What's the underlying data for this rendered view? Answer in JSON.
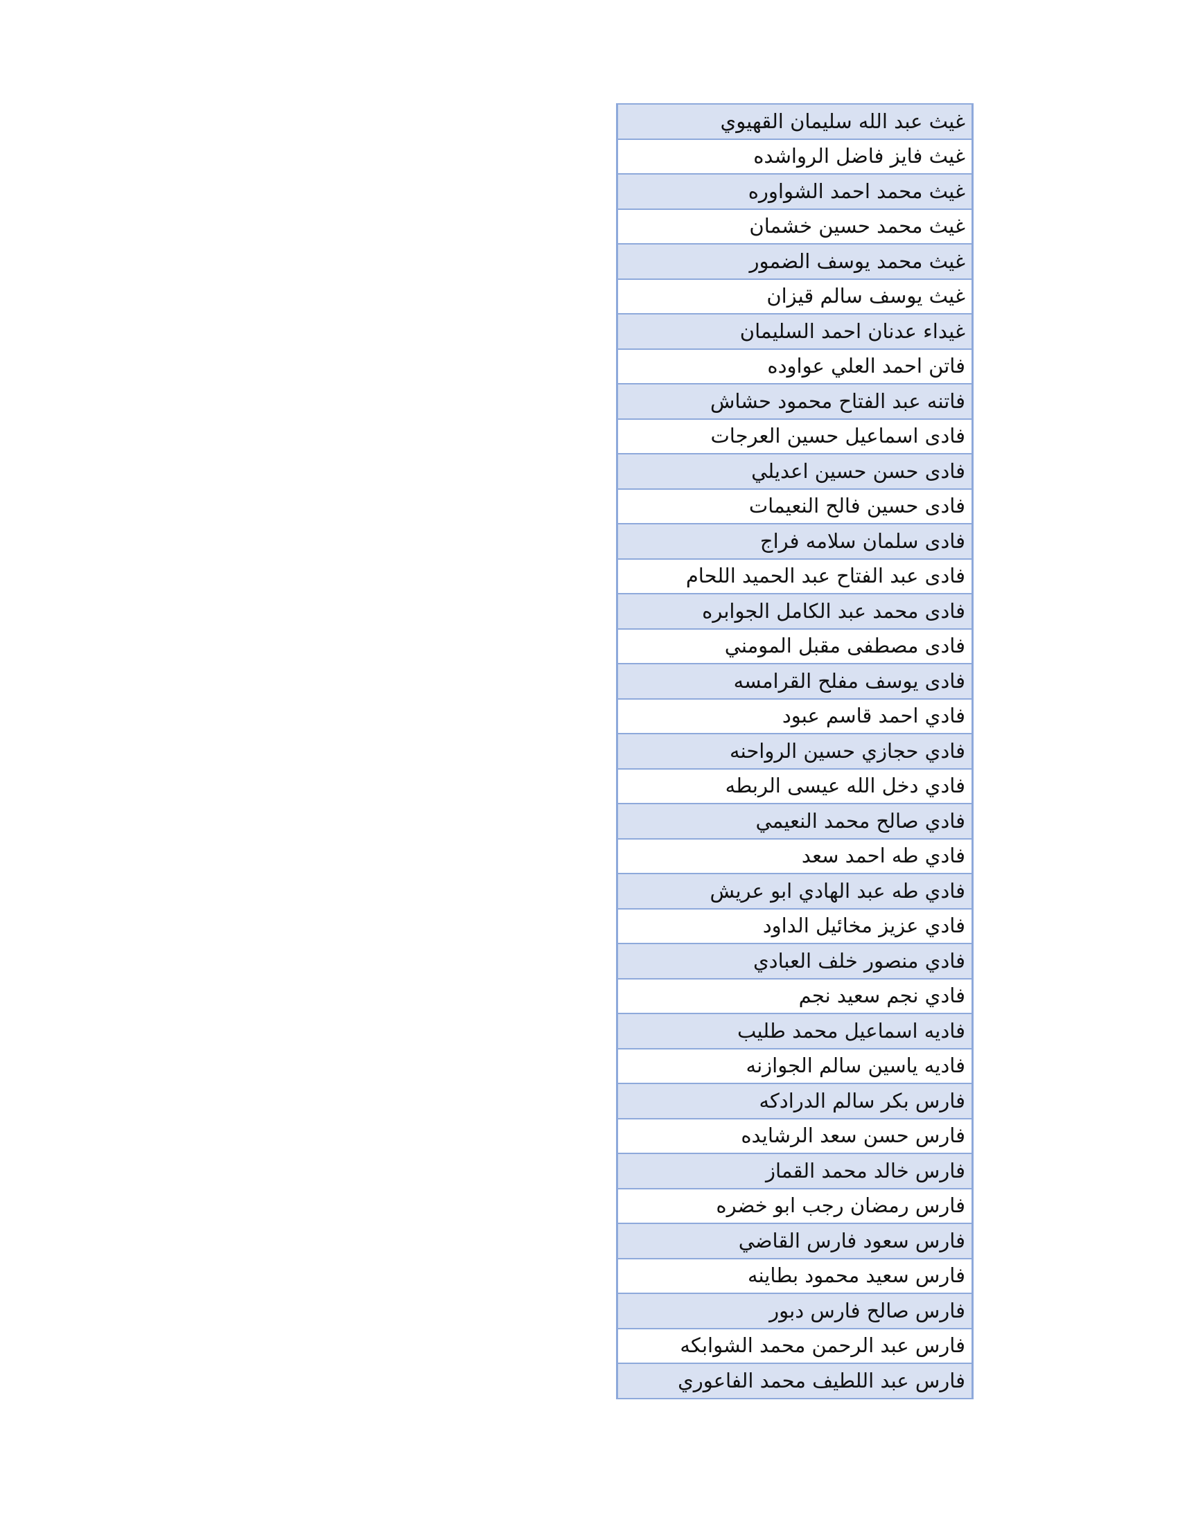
{
  "table": {
    "colors": {
      "band": "#D9E1F2",
      "border": "#8EA9DB"
    },
    "rows": [
      "غيث عبد الله سليمان القهيوي",
      "غيث فايز فاضل الرواشده",
      "غيث محمد احمد الشواوره",
      "غيث محمد حسين خشمان",
      "غيث محمد يوسف الضمور",
      "غيث يوسف سالم قيزان",
      "غيداء عدنان احمد السليمان",
      "فاتن احمد العلي عواوده",
      "فاتنه عبد الفتاح محمود حشاش",
      "فادى اسماعيل حسين العرجات",
      "فادى حسن حسين اعديلي",
      "فادى حسين فالح النعيمات",
      "فادى سلمان سلامه فراج",
      "فادى عبد الفتاح عبد الحميد اللحام",
      "فادى محمد عبد الكامل الجوابره",
      "فادى مصطفى مقبل المومني",
      "فادى يوسف مفلح القرامسه",
      "فادي احمد قاسم عبود",
      "فادي حجازي حسين الرواحنه",
      "فادي دخل  الله عيسى الربطه",
      "فادي صالح محمد النعيمي",
      "فادي طه احمد سعد",
      "فادي طه عبد الهادي ابو عريش",
      "فادي عزيز مخائيل الداود",
      "فادي منصور خلف العبادي",
      "فادي نجم سعيد نجم",
      "فاديه اسماعيل محمد طليب",
      "فاديه ياسين سالم الجوازنه",
      "فارس بكر سالم الدرادكه",
      "فارس حسن سعد الرشايده",
      "فارس خالد محمد القماز",
      "فارس رمضان رجب ابو خضره",
      "فارس سعود فارس القاضي",
      "فارس سعيد محمود بطاينه",
      "فارس صالح فارس دبور",
      "فارس عبد الرحمن محمد الشوابكه",
      "فارس عبد اللطيف محمد الفاعوري"
    ]
  }
}
